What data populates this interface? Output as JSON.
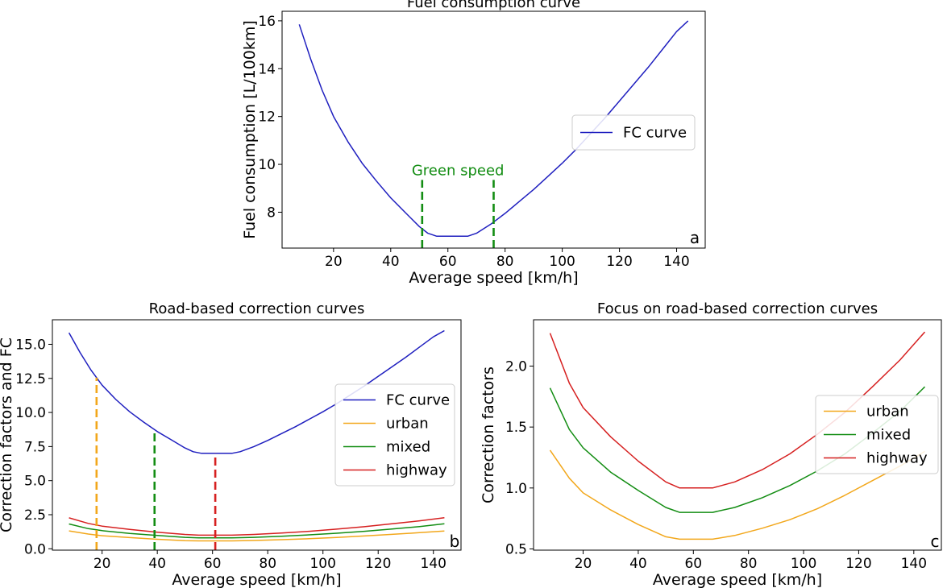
{
  "chart_data": [
    {
      "type": "line",
      "panel_label": "a",
      "title": "Fuel consumption curve",
      "xlabel": "Average speed [km/h]",
      "ylabel": "Fuel consumption [L/100km]",
      "xlim": [
        2,
        150
      ],
      "ylim": [
        6.5,
        16.4
      ],
      "xticks": [
        20,
        40,
        60,
        80,
        100,
        120,
        140
      ],
      "yticks": [
        8,
        10,
        12,
        14,
        16
      ],
      "legend_position": "center-right",
      "series": [
        {
          "name": "FC curve",
          "color": "#1f1fbf",
          "x": [
            8,
            12,
            16,
            20,
            25,
            30,
            35,
            40,
            45,
            50,
            53,
            56,
            60,
            64,
            67,
            70,
            75,
            80,
            85,
            90,
            95,
            100,
            105,
            110,
            115,
            120,
            125,
            130,
            135,
            140,
            144
          ],
          "y": [
            15.85,
            14.4,
            13.1,
            12.0,
            10.95,
            10.05,
            9.3,
            8.6,
            8.0,
            7.4,
            7.12,
            7.0,
            7.0,
            7.0,
            7.0,
            7.12,
            7.5,
            7.95,
            8.45,
            8.95,
            9.5,
            10.05,
            10.65,
            11.3,
            11.95,
            12.65,
            13.35,
            14.05,
            14.8,
            15.55,
            16.0
          ]
        }
      ],
      "markers": [
        {
          "x": 51,
          "y_top": 9.35,
          "color": "#138d13"
        },
        {
          "x": 76,
          "y_top": 9.35,
          "color": "#138d13"
        }
      ],
      "annotation": {
        "text": "Green speed",
        "x": 63.5,
        "y": 9.55,
        "color": "#138d13"
      }
    },
    {
      "type": "line",
      "panel_label": "b",
      "title": "Road-based correction curves",
      "xlabel": "Average speed [km/h]",
      "ylabel": "Correction factors and FC",
      "xlim": [
        2,
        150
      ],
      "ylim": [
        -0.1,
        16.8
      ],
      "xticks": [
        20,
        40,
        60,
        80,
        100,
        120,
        140
      ],
      "yticks": [
        0.0,
        2.5,
        5.0,
        7.5,
        10.0,
        12.5,
        15.0
      ],
      "ytick_labels": [
        "0.0",
        "2.5",
        "5.0",
        "7.5",
        "10.0",
        "12.5",
        "15.0"
      ],
      "legend_position": "center-right",
      "series": [
        {
          "name": "FC curve",
          "color": "#1f1fbf",
          "x": [
            8,
            12,
            16,
            20,
            25,
            30,
            35,
            40,
            45,
            50,
            53,
            56,
            60,
            64,
            67,
            70,
            75,
            80,
            85,
            90,
            95,
            100,
            105,
            110,
            115,
            120,
            125,
            130,
            135,
            140,
            144
          ],
          "y": [
            15.85,
            14.4,
            13.1,
            12.0,
            10.95,
            10.05,
            9.3,
            8.6,
            8.0,
            7.4,
            7.12,
            7.0,
            7.0,
            7.0,
            7.0,
            7.12,
            7.5,
            7.95,
            8.45,
            8.95,
            9.5,
            10.05,
            10.65,
            11.3,
            11.95,
            12.65,
            13.35,
            14.05,
            14.8,
            15.55,
            16.0
          ]
        },
        {
          "name": "urban",
          "color": "#f2a71b",
          "x": [
            8,
            15,
            20,
            30,
            40,
            50,
            55,
            60,
            67,
            75,
            85,
            95,
            105,
            115,
            125,
            135,
            144
          ],
          "y": [
            1.31,
            1.08,
            0.96,
            0.82,
            0.7,
            0.6,
            0.58,
            0.58,
            0.58,
            0.61,
            0.67,
            0.74,
            0.83,
            0.94,
            1.06,
            1.18,
            1.3
          ]
        },
        {
          "name": "mixed",
          "color": "#138d13",
          "x": [
            8,
            15,
            20,
            30,
            40,
            50,
            55,
            60,
            67,
            75,
            85,
            95,
            105,
            115,
            125,
            135,
            144
          ],
          "y": [
            1.82,
            1.48,
            1.33,
            1.13,
            0.98,
            0.84,
            0.8,
            0.8,
            0.8,
            0.84,
            0.92,
            1.02,
            1.14,
            1.28,
            1.45,
            1.63,
            1.83
          ]
        },
        {
          "name": "highway",
          "color": "#d62020",
          "x": [
            8,
            15,
            20,
            30,
            40,
            50,
            55,
            60,
            67,
            75,
            85,
            95,
            105,
            115,
            125,
            135,
            144
          ],
          "y": [
            2.27,
            1.86,
            1.66,
            1.42,
            1.22,
            1.05,
            1.0,
            1.0,
            1.0,
            1.05,
            1.15,
            1.28,
            1.44,
            1.62,
            1.83,
            2.05,
            2.28
          ]
        }
      ],
      "markers": [
        {
          "x": 18,
          "y_top": 12.55,
          "color": "#f2a71b"
        },
        {
          "x": 39,
          "y_top": 8.7,
          "color": "#138d13"
        },
        {
          "x": 61,
          "y_top": 7.0,
          "color": "#d62020"
        }
      ]
    },
    {
      "type": "line",
      "panel_label": "c",
      "title": "Focus on road-based correction curves",
      "xlabel": "Average speed [km/h]",
      "ylabel": "Correction factors",
      "xlim": [
        2,
        150
      ],
      "ylim": [
        0.49,
        2.38
      ],
      "xticks": [
        20,
        40,
        60,
        80,
        100,
        120,
        140
      ],
      "yticks": [
        0.5,
        1.0,
        1.5,
        2.0
      ],
      "ytick_labels": [
        "0.5",
        "1.0",
        "1.5",
        "2.0"
      ],
      "legend_position": "center-right",
      "series": [
        {
          "name": "urban",
          "color": "#f2a71b",
          "x": [
            8,
            15,
            20,
            30,
            40,
            50,
            55,
            60,
            67,
            75,
            85,
            95,
            105,
            115,
            125,
            135,
            144
          ],
          "y": [
            1.31,
            1.08,
            0.96,
            0.82,
            0.7,
            0.6,
            0.58,
            0.58,
            0.58,
            0.61,
            0.67,
            0.74,
            0.83,
            0.94,
            1.06,
            1.18,
            1.3
          ]
        },
        {
          "name": "mixed",
          "color": "#138d13",
          "x": [
            8,
            15,
            20,
            30,
            40,
            50,
            55,
            60,
            67,
            75,
            85,
            95,
            105,
            115,
            125,
            135,
            144
          ],
          "y": [
            1.82,
            1.48,
            1.33,
            1.13,
            0.98,
            0.84,
            0.8,
            0.8,
            0.8,
            0.84,
            0.92,
            1.02,
            1.14,
            1.28,
            1.45,
            1.63,
            1.83
          ]
        },
        {
          "name": "highway",
          "color": "#d62020",
          "x": [
            8,
            15,
            20,
            30,
            40,
            50,
            55,
            60,
            67,
            75,
            85,
            95,
            105,
            115,
            125,
            135,
            144
          ],
          "y": [
            2.27,
            1.86,
            1.66,
            1.42,
            1.22,
            1.05,
            1.0,
            1.0,
            1.0,
            1.05,
            1.15,
            1.28,
            1.44,
            1.62,
            1.83,
            2.05,
            2.28
          ]
        }
      ],
      "markers": []
    }
  ]
}
